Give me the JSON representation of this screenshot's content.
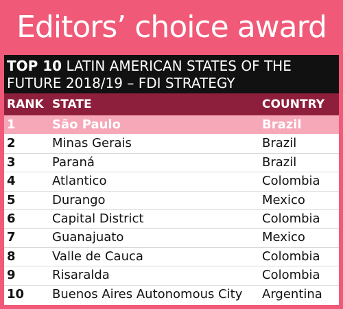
{
  "award": {
    "title": "Editors’ choice award"
  },
  "headline": {
    "line1_bold": "TOP 10",
    "line1_rest": "LATIN AMERICAN STATES OF THE",
    "line2": "FUTURE 2018/19 – FDI STRATEGY"
  },
  "columns": {
    "rank": "RANK",
    "state": "STATE",
    "country": "COUNTRY"
  },
  "rows": [
    {
      "rank": "1",
      "state": "São Paulo",
      "country": "Brazil"
    },
    {
      "rank": "2",
      "state": "Minas Gerais",
      "country": "Brazil"
    },
    {
      "rank": "3",
      "state": "Paraná",
      "country": "Brazil"
    },
    {
      "rank": "4",
      "state": "Atlantico",
      "country": "Colombia"
    },
    {
      "rank": "5",
      "state": "Durango",
      "country": "Mexico"
    },
    {
      "rank": "6",
      "state": "Capital District",
      "country": "Colombia"
    },
    {
      "rank": "7",
      "state": "Guanajuato",
      "country": "Mexico"
    },
    {
      "rank": "8",
      "state": "Valle de Cauca",
      "country": "Colombia"
    },
    {
      "rank": "9",
      "state": "Risaralda",
      "country": "Colombia"
    },
    {
      "rank": "10",
      "state": "Buenos Aires Autonomous City",
      "country": "Argentina"
    }
  ],
  "colors": {
    "background": "#f05a78",
    "headline_bg": "#111111",
    "column_header_bg": "#8e1f3c",
    "highlight_row_bg": "#f6a7b8"
  }
}
